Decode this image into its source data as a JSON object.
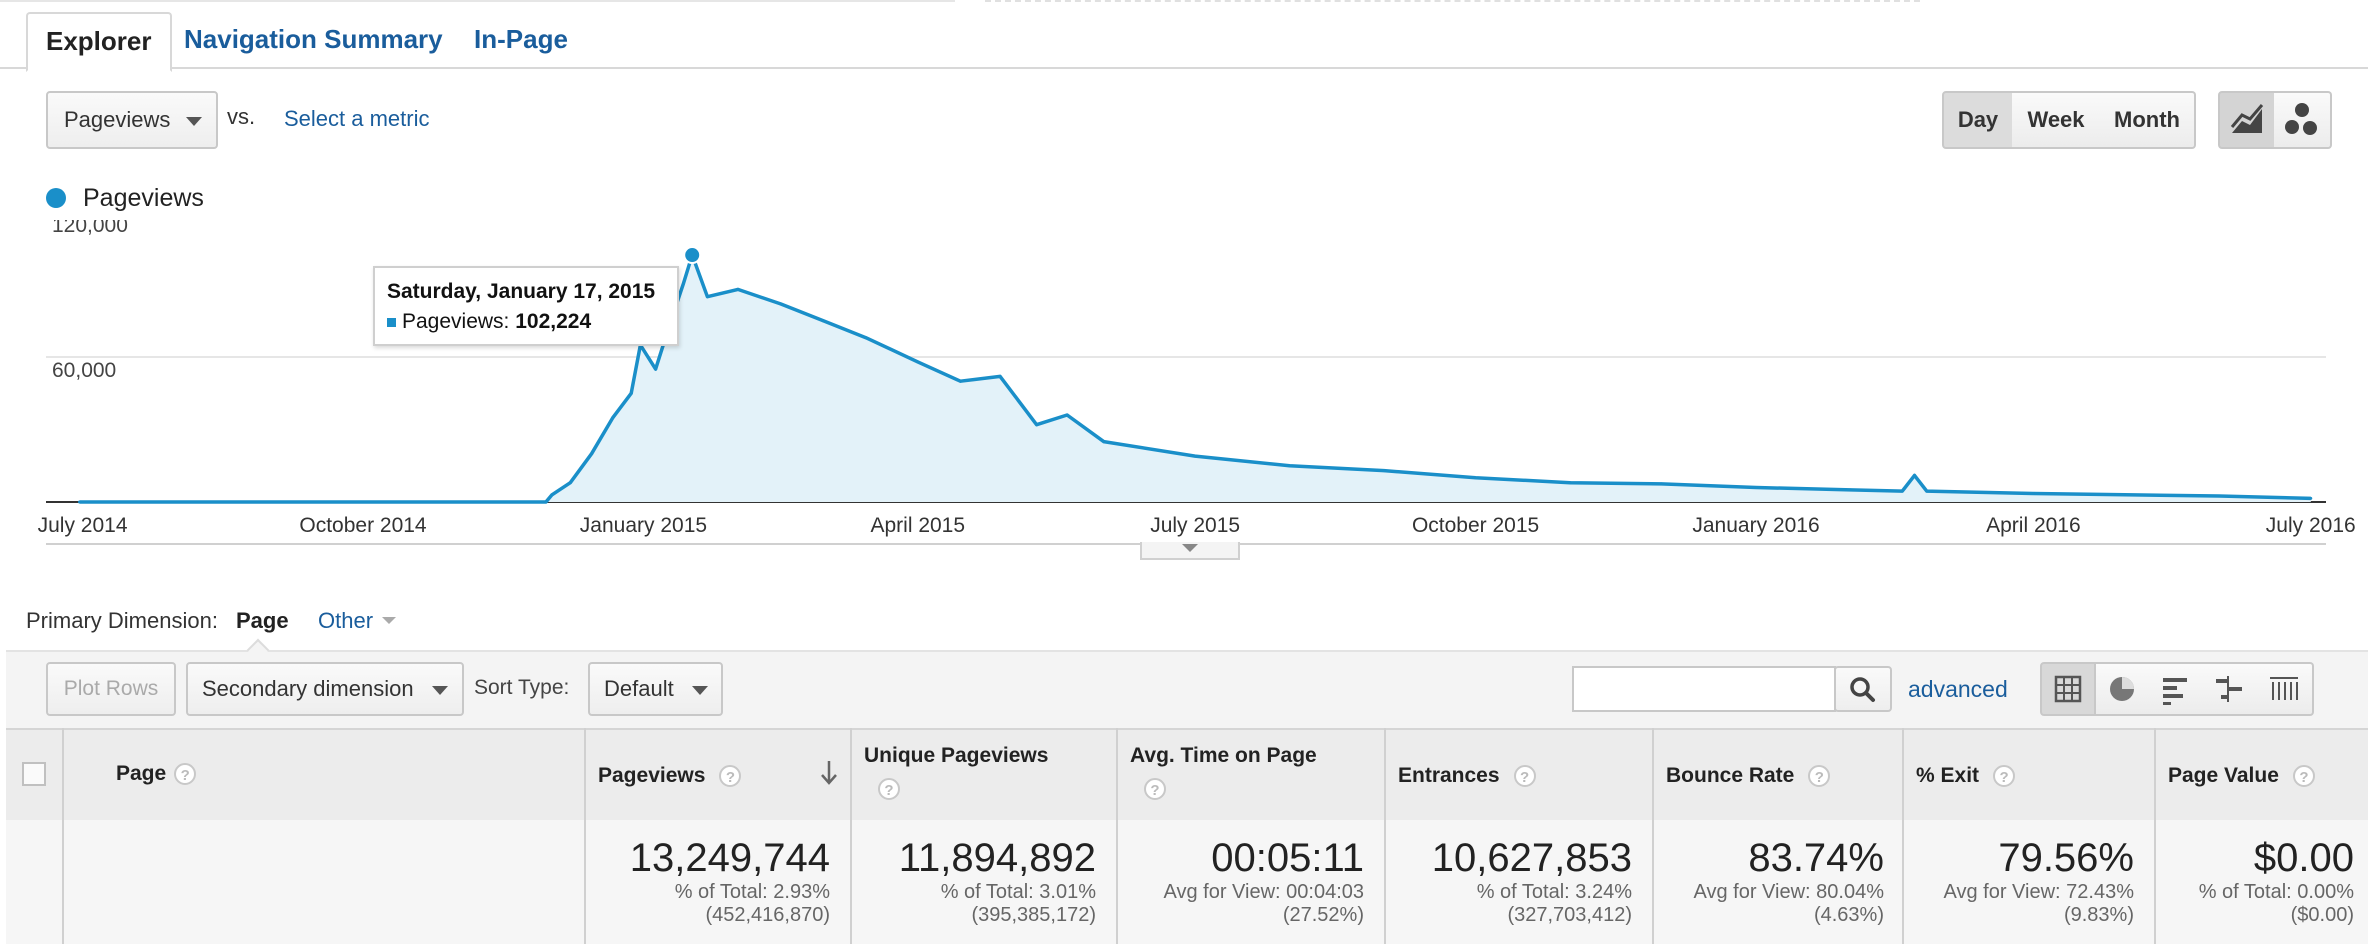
{
  "tabs": [
    {
      "label": "Explorer",
      "active": true
    },
    {
      "label": "Navigation Summary",
      "active": false
    },
    {
      "label": "In-Page",
      "active": false
    }
  ],
  "metric": {
    "primary": "Pageviews",
    "vs": "vs.",
    "select_metric": "Select a metric"
  },
  "granularity": [
    {
      "label": "Day",
      "active": true
    },
    {
      "label": "Week",
      "active": false
    },
    {
      "label": "Month",
      "active": false
    }
  ],
  "chart_buttons": [
    "line-chart-icon",
    "motion-chart-icon"
  ],
  "legend": {
    "label": "Pageviews",
    "color": "#1a8fc9"
  },
  "tooltip": {
    "date": "Saturday, January 17, 2015",
    "metric": "Pageviews:",
    "value": "102,224"
  },
  "chart_data": {
    "type": "area",
    "title": "",
    "series": [
      {
        "name": "Pageviews",
        "color": "#1a8fc9"
      }
    ],
    "y_ticks": [
      "120,000",
      "60,000"
    ],
    "ylim": [
      0,
      120000
    ],
    "x_tick_labels": [
      "July 2014",
      "October 2014",
      "January 2015",
      "April 2015",
      "July 2015",
      "October 2015",
      "January 2016",
      "April 2016",
      "July 2016"
    ],
    "points": [
      [
        "2014-06-30",
        0
      ],
      [
        "2014-11-30",
        0
      ],
      [
        "2014-12-02",
        3000
      ],
      [
        "2014-12-08",
        8000
      ],
      [
        "2014-12-15",
        20000
      ],
      [
        "2014-12-22",
        35000
      ],
      [
        "2014-12-28",
        45000
      ],
      [
        "2014-12-31",
        65000
      ],
      [
        "2015-01-05",
        55000
      ],
      [
        "2015-01-10",
        75000
      ],
      [
        "2015-01-14",
        90000
      ],
      [
        "2015-01-17",
        102224
      ],
      [
        "2015-01-22",
        85000
      ],
      [
        "2015-02-01",
        88000
      ],
      [
        "2015-02-15",
        82000
      ],
      [
        "2015-03-01",
        75000
      ],
      [
        "2015-03-15",
        68000
      ],
      [
        "2015-04-01",
        58000
      ],
      [
        "2015-04-15",
        50000
      ],
      [
        "2015-04-28",
        52000
      ],
      [
        "2015-05-10",
        32000
      ],
      [
        "2015-05-20",
        36000
      ],
      [
        "2015-06-01",
        25000
      ],
      [
        "2015-07-01",
        19000
      ],
      [
        "2015-08-01",
        15000
      ],
      [
        "2015-09-01",
        13000
      ],
      [
        "2015-10-01",
        10000
      ],
      [
        "2015-11-01",
        8000
      ],
      [
        "2015-12-01",
        7500
      ],
      [
        "2016-01-01",
        6000
      ],
      [
        "2016-02-01",
        5000
      ],
      [
        "2016-02-18",
        4500
      ],
      [
        "2016-02-22",
        11000
      ],
      [
        "2016-02-26",
        4500
      ],
      [
        "2016-04-01",
        3500
      ],
      [
        "2016-05-01",
        3000
      ],
      [
        "2016-06-01",
        2500
      ],
      [
        "2016-07-01",
        1500
      ]
    ],
    "highlight": {
      "date": "2015-01-17",
      "value": 102224
    },
    "grid": true
  },
  "primary_dimension": {
    "label": "Primary Dimension:",
    "value": "Page",
    "other": "Other"
  },
  "toolbar": {
    "plot_rows": "Plot Rows",
    "secondary_dimension": "Secondary dimension",
    "sort_type_label": "Sort Type:",
    "sort_type_value": "Default",
    "search_placeholder": "",
    "advanced": "advanced",
    "view_icons": [
      "table-view-icon",
      "pie-view-icon",
      "performance-view-icon",
      "comparison-view-icon",
      "pivot-view-icon"
    ]
  },
  "table": {
    "columns": [
      {
        "label": "Page",
        "help": "?"
      },
      {
        "label": "Pageviews",
        "help": "?"
      },
      {
        "label": "Unique Pageviews",
        "help": "?"
      },
      {
        "label": "Avg. Time on Page",
        "help": "?"
      },
      {
        "label": "Entrances",
        "help": "?"
      },
      {
        "label": "Bounce Rate",
        "help": "?"
      },
      {
        "label": "% Exit",
        "help": "?"
      },
      {
        "label": "Page Value",
        "help": "?"
      }
    ],
    "totals": [
      {
        "value": "13,249,744",
        "line1": "% of Total: 2.93%",
        "line2": "(452,416,870)"
      },
      {
        "value": "11,894,892",
        "line1": "% of Total: 3.01%",
        "line2": "(395,385,172)"
      },
      {
        "value": "00:05:11",
        "line1": "Avg for View: 00:04:03",
        "line2": "(27.52%)"
      },
      {
        "value": "10,627,853",
        "line1": "% of Total: 3.24%",
        "line2": "(327,703,412)"
      },
      {
        "value": "83.74%",
        "line1": "Avg for View: 80.04%",
        "line2": "(4.63%)"
      },
      {
        "value": "79.56%",
        "line1": "Avg for View: 72.43%",
        "line2": "(9.83%)"
      },
      {
        "value": "$0.00",
        "line1": "% of Total: 0.00%",
        "line2": "($0.00)"
      }
    ]
  }
}
